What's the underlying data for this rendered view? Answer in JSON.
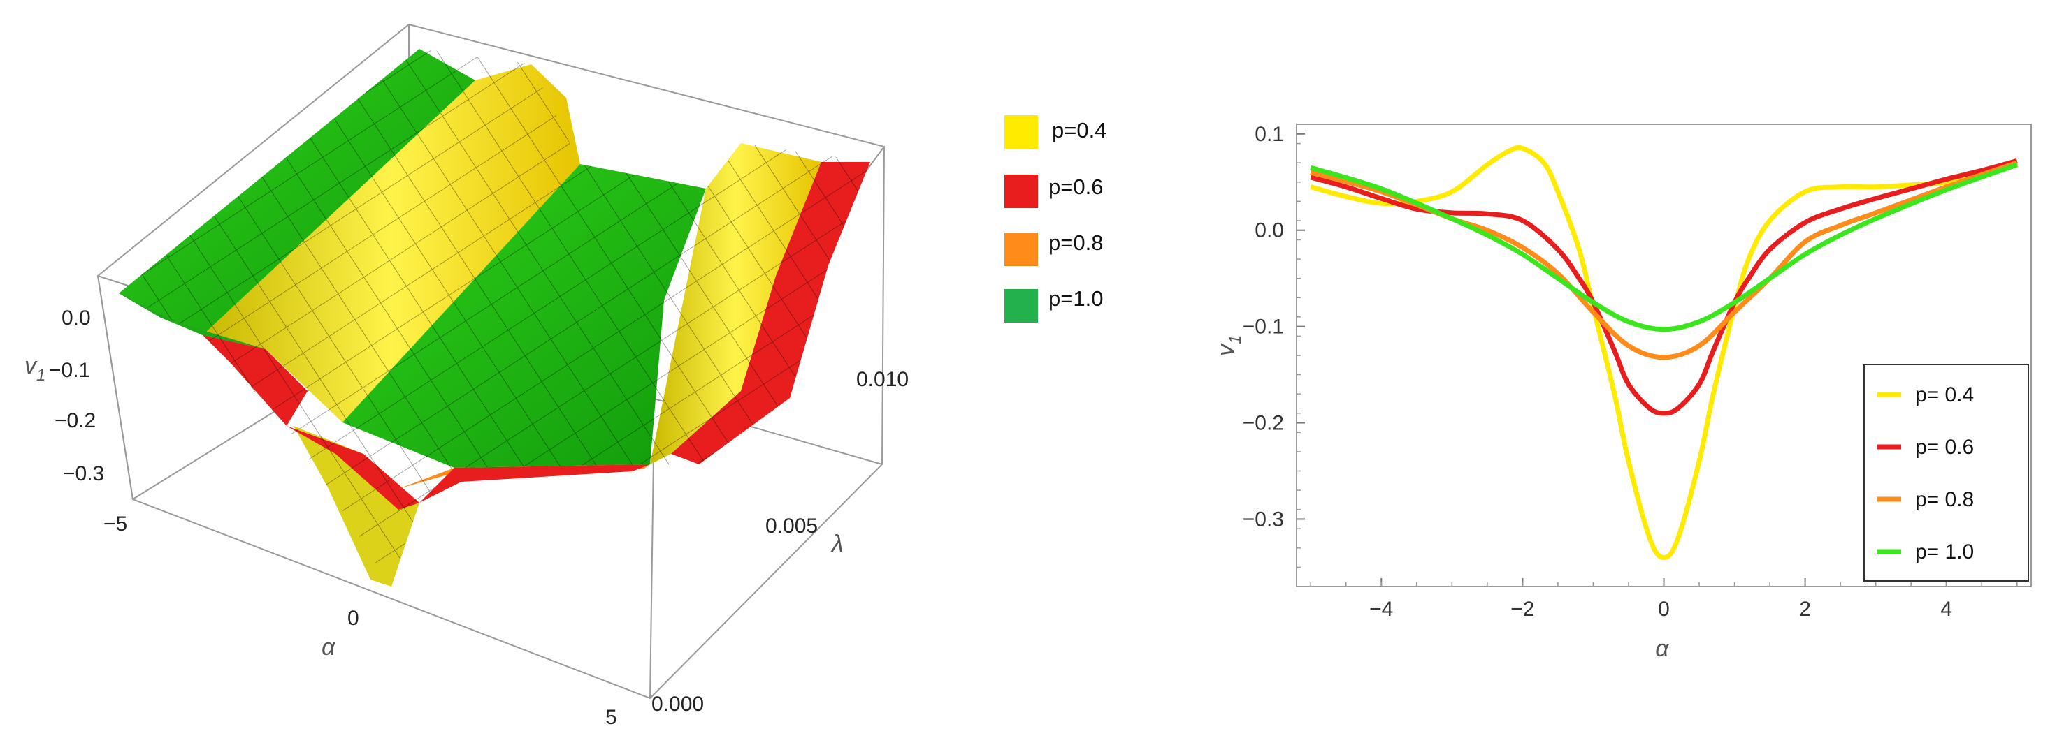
{
  "colors": {
    "yellow": "#FFEB00",
    "red": "#E81E1E",
    "orange": "#FF8C1A",
    "green": "#22B14C",
    "lime": "#3CE61E"
  },
  "chart_data": [
    {
      "type": "surface3d",
      "x": {
        "label": "α",
        "ticks": [
          "−5",
          "0",
          "5"
        ],
        "range": [
          -5,
          5
        ]
      },
      "y": {
        "label": "λ",
        "ticks": [
          "0.000",
          "0.005",
          "0.010"
        ],
        "range": [
          0,
          0.01
        ]
      },
      "z": {
        "label": "v",
        "label_sub": "1",
        "ticks": [
          "0.0",
          "−0.1",
          "−0.2",
          "−0.3"
        ],
        "range": [
          -0.35,
          0.1
        ]
      },
      "legend": [
        {
          "label": "p=0.4",
          "color": "#FFEB00"
        },
        {
          "label": "p=0.6",
          "color": "#E81E1E"
        },
        {
          "label": "p=0.8",
          "color": "#FF8C1A"
        },
        {
          "label": "p=1.0",
          "color": "#22B14C"
        }
      ]
    },
    {
      "type": "line",
      "xlabel": "α",
      "ylabel": "v",
      "ylabel_sub": "1",
      "xlim": [
        -5.2,
        5.2
      ],
      "ylim": [
        -0.37,
        0.11
      ],
      "xticks": [
        -4,
        -2,
        0,
        2,
        4
      ],
      "xtick_labels": [
        "−4",
        "−2",
        "0",
        "2",
        "4"
      ],
      "yticks": [
        0.1,
        0.0,
        -0.1,
        -0.2,
        -0.3
      ],
      "ytick_labels": [
        "0.1",
        "0.0",
        "−0.1",
        "−0.2",
        "−0.3"
      ],
      "legend_position": "bottom-right",
      "series": [
        {
          "name": "p= 0.4",
          "color": "#FFEB00",
          "x": [
            -5,
            -4.5,
            -4,
            -3.5,
            -3,
            -2.5,
            -2.2,
            -2,
            -1.7,
            -1.5,
            -1.2,
            -1,
            -0.7,
            -0.5,
            -0.2,
            0,
            0.2,
            0.5,
            0.7,
            1,
            1.2,
            1.5,
            2,
            2.5,
            3,
            3.5,
            4,
            4.5,
            5
          ],
          "y": [
            0.045,
            0.035,
            0.028,
            0.03,
            0.04,
            0.068,
            0.082,
            0.085,
            0.07,
            0.04,
            -0.02,
            -0.08,
            -0.17,
            -0.24,
            -0.32,
            -0.34,
            -0.32,
            -0.24,
            -0.17,
            -0.08,
            -0.03,
            0.01,
            0.04,
            0.045,
            0.045,
            0.047,
            0.05,
            0.06,
            0.072
          ]
        },
        {
          "name": "p= 0.6",
          "color": "#E81E1E",
          "x": [
            -5,
            -4.5,
            -4,
            -3.5,
            -3,
            -2.5,
            -2,
            -1.5,
            -1.2,
            -1,
            -0.7,
            -0.5,
            -0.2,
            0,
            0.2,
            0.5,
            0.7,
            1,
            1.2,
            1.5,
            2,
            2.5,
            3,
            3.5,
            4,
            4.5,
            5
          ],
          "y": [
            0.055,
            0.045,
            0.033,
            0.022,
            0.018,
            0.017,
            0.01,
            -0.02,
            -0.05,
            -0.075,
            -0.125,
            -0.16,
            -0.185,
            -0.19,
            -0.185,
            -0.16,
            -0.125,
            -0.075,
            -0.05,
            -0.02,
            0.008,
            0.022,
            0.033,
            0.043,
            0.053,
            0.062,
            0.072
          ]
        },
        {
          "name": "p= 0.8",
          "color": "#FF8C1A",
          "x": [
            -5,
            -4,
            -3,
            -2.5,
            -2,
            -1.5,
            -1,
            -0.5,
            0,
            0.5,
            1,
            1.5,
            2,
            2.5,
            3,
            4,
            5
          ],
          "y": [
            0.06,
            0.04,
            0.012,
            0.0,
            -0.018,
            -0.045,
            -0.085,
            -0.12,
            -0.132,
            -0.12,
            -0.085,
            -0.05,
            -0.012,
            0.005,
            0.018,
            0.045,
            0.07
          ]
        },
        {
          "name": "p= 1.0",
          "color": "#3CE61E",
          "x": [
            -5,
            -4,
            -3,
            -2.5,
            -2,
            -1.5,
            -1,
            -0.5,
            0,
            0.5,
            1,
            1.5,
            2,
            2.5,
            3,
            4,
            5
          ],
          "y": [
            0.065,
            0.043,
            0.012,
            -0.005,
            -0.025,
            -0.05,
            -0.075,
            -0.095,
            -0.103,
            -0.095,
            -0.075,
            -0.05,
            -0.025,
            -0.005,
            0.012,
            0.042,
            0.068
          ]
        }
      ]
    }
  ]
}
